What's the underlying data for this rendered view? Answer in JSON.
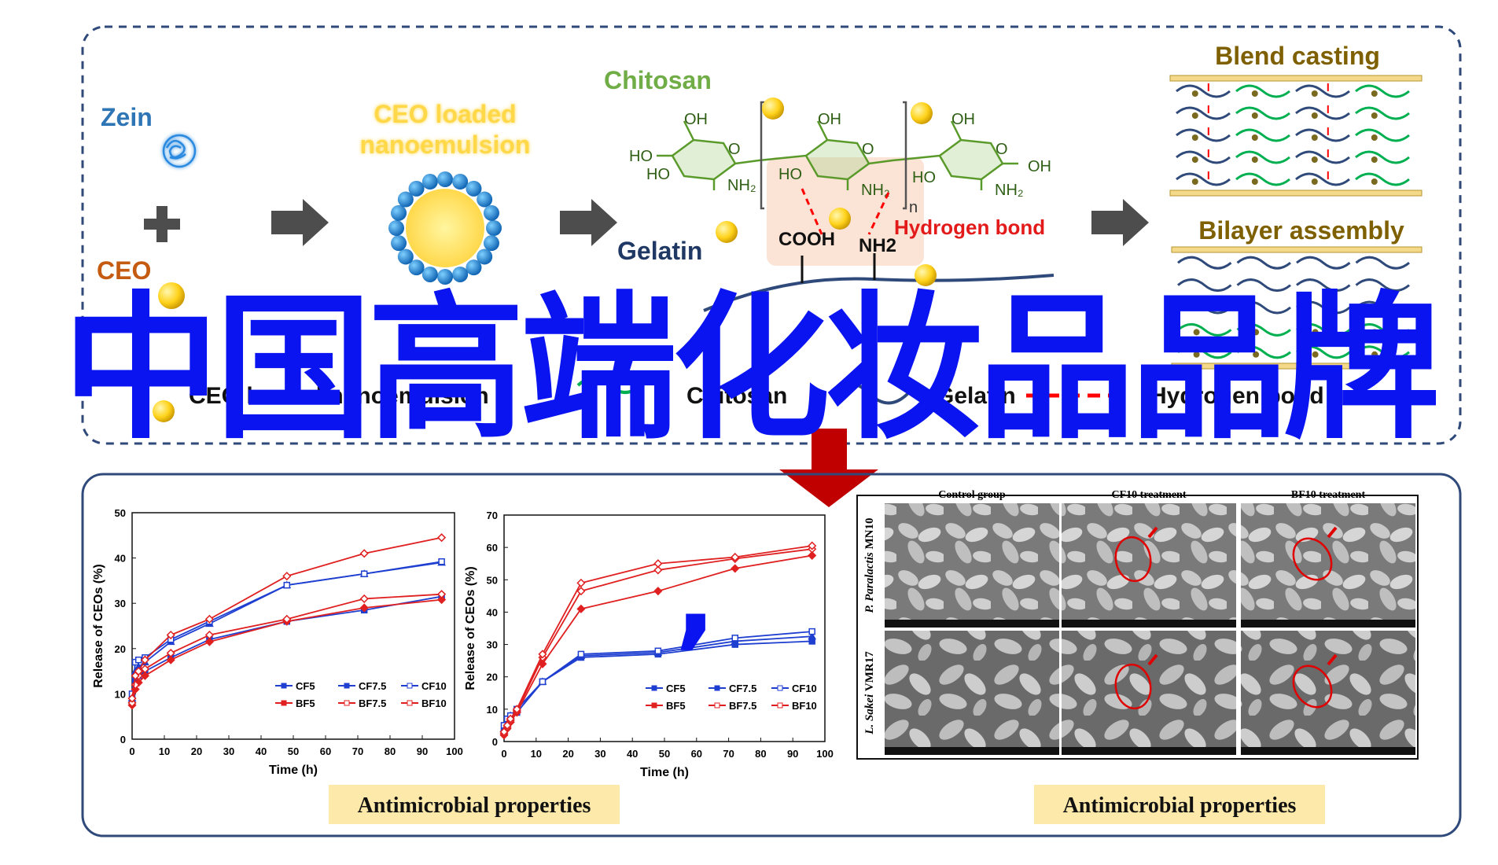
{
  "overlay": {
    "title": "中国高端化妆品品牌",
    "comma": ","
  },
  "top_panel": {
    "zein_label": "Zein",
    "ceo_label": "CEO",
    "nanoemulsion_label_line1": "CEO loaded",
    "nanoemulsion_label_line2": "nanoemulsion",
    "chitosan_label": "Chitosan",
    "gelatin_label": "Gelatin",
    "hydrogen_bond_label": "Hydrogen bond",
    "cooh_label": "COOH",
    "nh2_label": "NH2",
    "n_label": "n",
    "blend_casting_label": "Blend casting",
    "bilayer_assembly_label": "Bilayer assembly",
    "legend": [
      {
        "symbol": "dot",
        "label": "CEO loaded nanoemulsion"
      },
      {
        "symbol": "green-line",
        "label": "Chitosan"
      },
      {
        "symbol": "blue-line",
        "label": "Gelatin"
      },
      {
        "symbol": "red-dash",
        "label": "Hydrogen bond"
      }
    ],
    "colors": {
      "zein": "#2e75b6",
      "ceo": "#c55a11",
      "chitosan": "#70ad47",
      "gelatin": "#1f3864",
      "hbond": "#ff0000",
      "sphere": "#ffd700",
      "blend": "#7f6000"
    }
  },
  "chart_data": [
    {
      "type": "line",
      "xlabel": "Time (h)",
      "ylabel": "Release of CEOs (%)",
      "xlim": [
        0,
        100
      ],
      "ylim": [
        0,
        50
      ],
      "xticks": [
        0,
        10,
        20,
        30,
        40,
        50,
        60,
        70,
        80,
        90,
        100
      ],
      "yticks": [
        0,
        10,
        20,
        30,
        40,
        50
      ],
      "legend_position": "bottom-right",
      "x": [
        0,
        1,
        2,
        4,
        12,
        24,
        48,
        72,
        96
      ],
      "series": [
        {
          "name": "CF5",
          "color": "#1f3fd0",
          "marker": "square",
          "values": [
            8,
            13,
            14,
            15,
            18,
            22,
            26,
            28.5,
            31.5
          ]
        },
        {
          "name": "CF7.5",
          "color": "#1f3fd0",
          "marker": "triangle",
          "values": [
            9,
            15,
            16,
            17,
            21.5,
            25.5,
            34,
            36.5,
            39
          ]
        },
        {
          "name": "CF10",
          "color": "#1f3fd0",
          "marker": "open-square",
          "values": [
            10,
            17,
            17.5,
            18,
            22,
            26,
            34,
            36.5,
            39.2
          ]
        },
        {
          "name": "BF5",
          "color": "#e02020",
          "marker": "diamond",
          "values": [
            7.5,
            11,
            12.5,
            14,
            17.5,
            21.5,
            26,
            29,
            30.8
          ]
        },
        {
          "name": "BF7.5",
          "color": "#e02020",
          "marker": "open-diamond",
          "values": [
            8,
            12,
            14,
            15.5,
            19,
            23,
            26.5,
            31,
            32
          ]
        },
        {
          "name": "BF10",
          "color": "#e02020",
          "marker": "open-diamond",
          "values": [
            9,
            14,
            15,
            17.5,
            23,
            26.5,
            36,
            41,
            44.5
          ]
        }
      ]
    },
    {
      "type": "line",
      "xlabel": "Time (h)",
      "ylabel": "Release of CEOs (%)",
      "xlim": [
        0,
        100
      ],
      "ylim": [
        0,
        70
      ],
      "xticks": [
        0,
        10,
        20,
        30,
        40,
        50,
        60,
        70,
        80,
        90,
        100
      ],
      "yticks": [
        0,
        10,
        20,
        30,
        40,
        50,
        60,
        70
      ],
      "legend_position": "bottom-right",
      "x": [
        0,
        1,
        2,
        4,
        12,
        24,
        48,
        72,
        96
      ],
      "series": [
        {
          "name": "CF5",
          "color": "#1f3fd0",
          "marker": "square",
          "values": [
            3,
            5,
            7,
            9,
            18.5,
            26,
            27,
            30,
            31
          ]
        },
        {
          "name": "CF7.5",
          "color": "#1f3fd0",
          "marker": "triangle",
          "values": [
            4,
            6,
            8,
            10,
            18.5,
            26.5,
            27.5,
            31,
            32.5
          ]
        },
        {
          "name": "CF10",
          "color": "#1f3fd0",
          "marker": "open-square",
          "values": [
            5,
            7,
            8,
            10,
            18.5,
            27,
            28,
            32,
            34
          ]
        },
        {
          "name": "BF5",
          "color": "#e02020",
          "marker": "diamond",
          "values": [
            2,
            4,
            6,
            9,
            24,
            41,
            46.5,
            53.5,
            57.5
          ]
        },
        {
          "name": "BF7.5",
          "color": "#e02020",
          "marker": "open-diamond",
          "values": [
            2.5,
            4.5,
            6.5,
            9.5,
            26,
            46.5,
            53,
            56.5,
            59.5
          ]
        },
        {
          "name": "BF10",
          "color": "#e02020",
          "marker": "open-diamond",
          "values": [
            3,
            5,
            7,
            10,
            27,
            49,
            55,
            57,
            60.5
          ]
        }
      ]
    }
  ],
  "micrographs": {
    "columns": [
      "Control group",
      "CF10 treatment",
      "BF10 treatment"
    ],
    "rows": [
      {
        "label_italic": "P. Paralactis",
        "label_plain": "MN10"
      },
      {
        "label_italic": "L. Sakei",
        "label_plain": "VMR17"
      }
    ]
  },
  "bottom_labels": {
    "left": "Antimicrobial properties",
    "right": "Antimicrobial properties"
  }
}
